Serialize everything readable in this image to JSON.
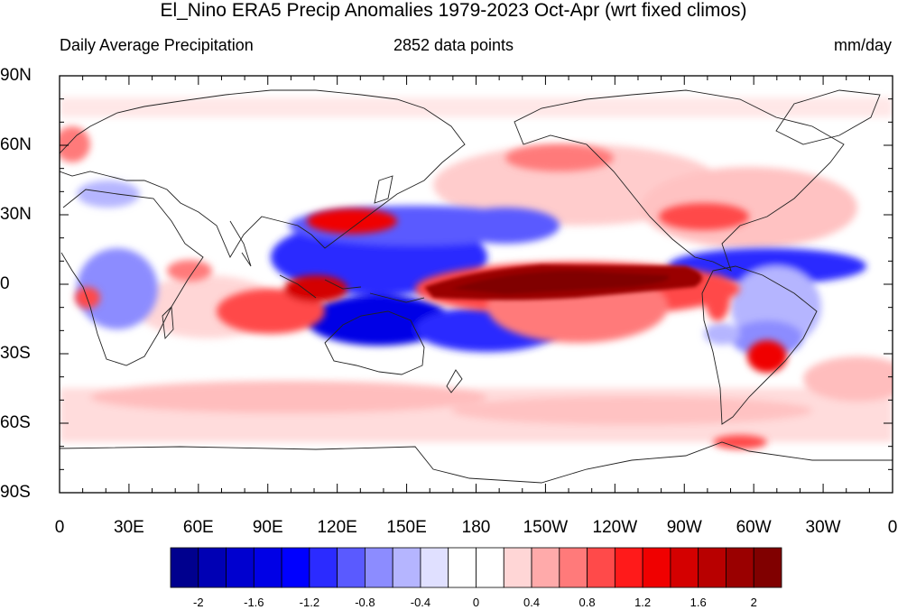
{
  "title": "El_Nino ERA5 Precip Anomalies 1979-2023 Oct-Apr (wrt fixed climos)",
  "subtitle_left": "Daily Average Precipitation",
  "subtitle_center": "2852 data points",
  "subtitle_right": "mm/day",
  "lat_labels": [
    "90N",
    "60N",
    "30N",
    "0",
    "30S",
    "60S",
    "90S"
  ],
  "lon_labels": [
    "0",
    "30E",
    "60E",
    "90E",
    "120E",
    "150E",
    "180",
    "150W",
    "120W",
    "90W",
    "60W",
    "30W",
    "0"
  ],
  "colorbar_labels": [
    "-2",
    "-1.6",
    "-1.2",
    "-0.8",
    "-0.4",
    "0",
    "0.4",
    "0.8",
    "1.2",
    "1.6",
    "2"
  ],
  "colorbar_colors": [
    "#00008e",
    "#0000b4",
    "#0000cf",
    "#0000e6",
    "#0000ff",
    "#2b2bff",
    "#5a5aff",
    "#8c8cff",
    "#b5b5ff",
    "#e0e0ff",
    "#ffffff",
    "#ffffff",
    "#ffd6d6",
    "#ffaaaa",
    "#ff7a7a",
    "#ff4a4a",
    "#ff1a1a",
    "#f00000",
    "#d40000",
    "#b80000",
    "#9a0000",
    "#800000"
  ]
}
